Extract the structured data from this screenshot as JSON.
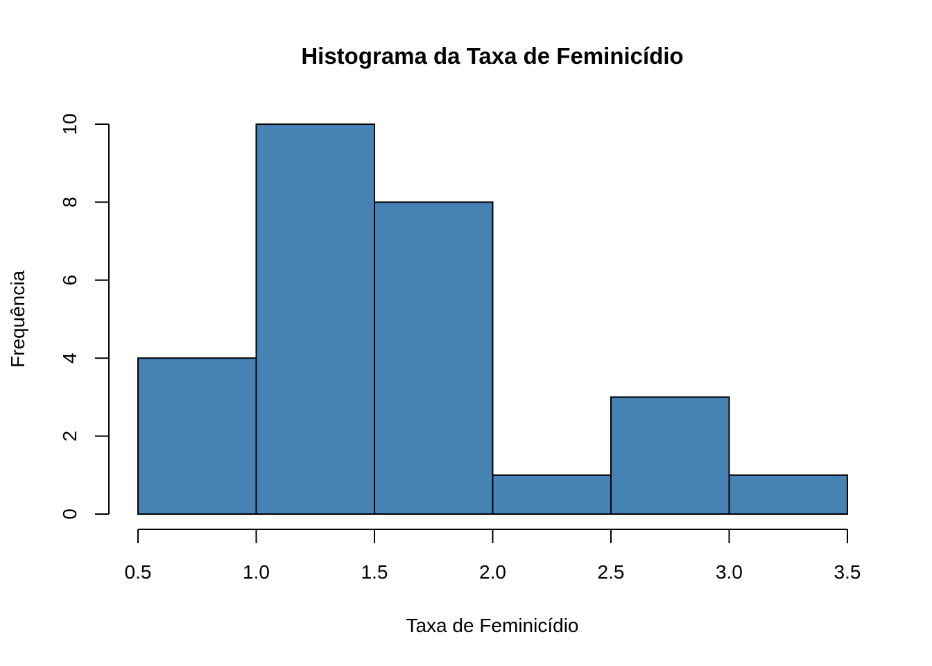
{
  "chart_data": {
    "type": "bar",
    "title": "Histograma da Taxa de Feminicídio",
    "xlabel": "Taxa de Feminicídio",
    "ylabel": "Frequência",
    "bins": [
      {
        "start": 0.5,
        "end": 1.0,
        "count": 4
      },
      {
        "start": 1.0,
        "end": 1.5,
        "count": 10
      },
      {
        "start": 1.5,
        "end": 2.0,
        "count": 8
      },
      {
        "start": 2.0,
        "end": 2.5,
        "count": 1
      },
      {
        "start": 2.5,
        "end": 3.0,
        "count": 3
      },
      {
        "start": 3.0,
        "end": 3.5,
        "count": 1
      }
    ],
    "xlim": [
      0.5,
      3.5
    ],
    "ylim": [
      0,
      10
    ],
    "x_ticks": [
      "0.5",
      "1.0",
      "1.5",
      "2.0",
      "2.5",
      "3.0",
      "3.5"
    ],
    "y_ticks": [
      "0",
      "2",
      "4",
      "6",
      "8",
      "10"
    ],
    "grid": false,
    "bar_color": "#4682B4",
    "bar_border_color": "#000000"
  }
}
